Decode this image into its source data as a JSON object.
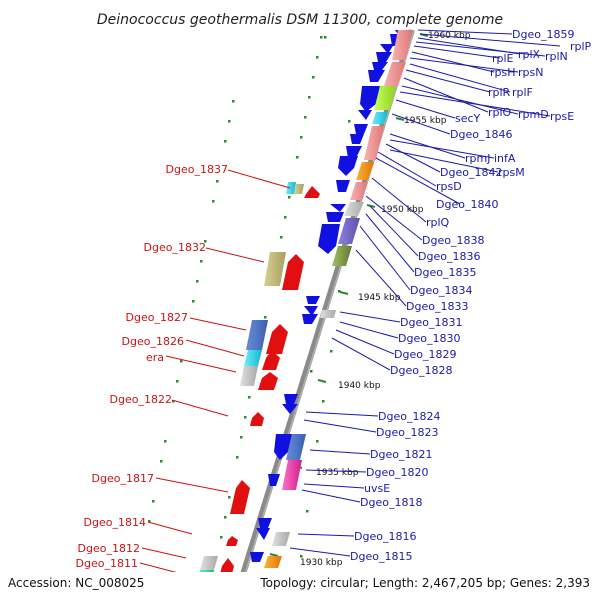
{
  "title": "Deinococcus geothermalis DSM 11300, complete genome",
  "footer": {
    "accession": "Accession: NC_008025",
    "topology": "Topology: circular; Length: 2,467,205 bp; Genes: 2,393"
  },
  "kbp_marks": [
    "1960 kbp",
    "1955 kbp",
    "1950 kbp",
    "1945 kbp",
    "1940 kbp",
    "1935 kbp",
    "1930 kbp"
  ],
  "right_labels": [
    "Dgeo_1859",
    "rplP",
    "rplX",
    "rplN",
    "rplE",
    "rpsH",
    "rpsN",
    "rplF",
    "rplR",
    "rplO",
    "rpmD",
    "rpsE",
    "secY",
    "Dgeo_1846",
    "rpmJ",
    "infA",
    "Dgeo_1842",
    "rpsM",
    "rpsD",
    "Dgeo_1840",
    "rplQ",
    "Dgeo_1838",
    "Dgeo_1836",
    "Dgeo_1835",
    "Dgeo_1834",
    "Dgeo_1833",
    "Dgeo_1831",
    "Dgeo_1830",
    "Dgeo_1829",
    "Dgeo_1828",
    "Dgeo_1824",
    "Dgeo_1823",
    "Dgeo_1821",
    "Dgeo_1820",
    "uvsE",
    "Dgeo_1818",
    "Dgeo_1816",
    "Dgeo_1815"
  ],
  "left_labels": [
    "Dgeo_1837",
    "Dgeo_1832",
    "Dgeo_1827",
    "Dgeo_1826",
    "era",
    "Dgeo_1822",
    "Dgeo_1817",
    "Dgeo_1814",
    "Dgeo_1812",
    "Dgeo_1811"
  ],
  "colors": {
    "reverse_strand": "#1010e0",
    "forward_strand": "#e01010",
    "rna_pink": "#f09090",
    "backbone": "#888888",
    "tick": "#2a8a2a",
    "label_blue": "#1a1aa8",
    "label_red": "#c81414"
  }
}
